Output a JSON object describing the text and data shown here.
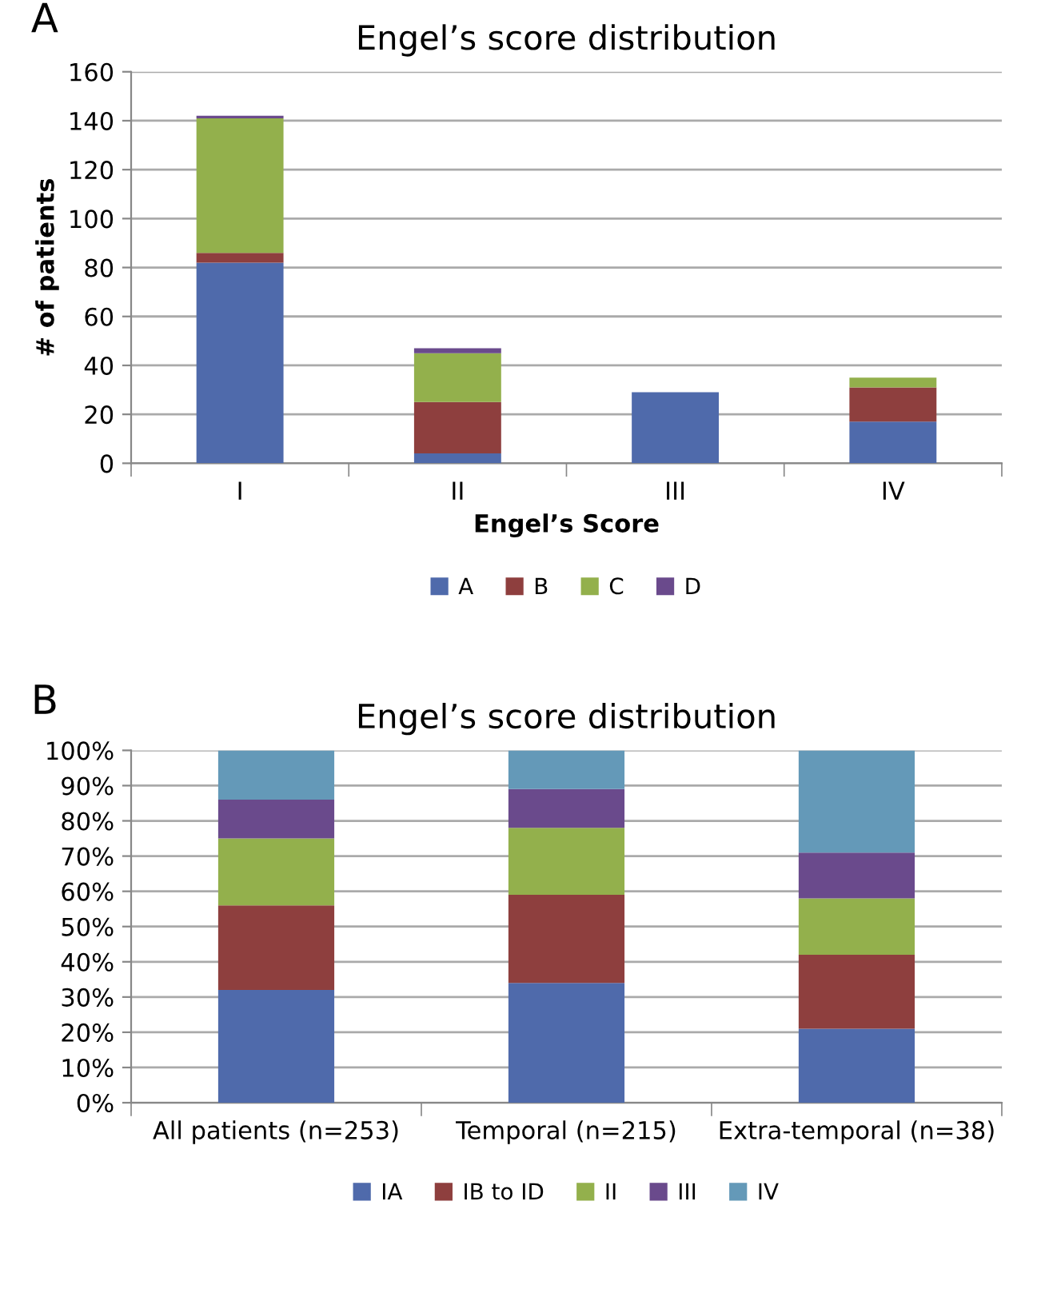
{
  "chart_data": [
    {
      "type": "bar",
      "title": "Engel’s score distribution",
      "xlabel": "Engel’s Score",
      "ylabel": "# of patients",
      "annotations": [
        "A"
      ],
      "categories": [
        "I",
        "II",
        "III",
        "IV"
      ],
      "stacked": true,
      "series": [
        {
          "name": "A",
          "color": "#4f6aab",
          "values": [
            82,
            4,
            29,
            17
          ]
        },
        {
          "name": "B",
          "color": "#8e3f3e",
          "values": [
            4,
            21,
            0,
            14
          ]
        },
        {
          "name": "C",
          "color": "#93b04c",
          "values": [
            55,
            20,
            0,
            4
          ]
        },
        {
          "name": "D",
          "color": "#6a4a8c",
          "values": [
            1,
            2,
            0,
            0
          ]
        }
      ],
      "ylim": [
        0,
        160
      ],
      "yticks": [
        0,
        20,
        40,
        60,
        80,
        100,
        120,
        140,
        160
      ],
      "grid": "y",
      "legend": "bottom"
    },
    {
      "type": "bar",
      "title": "Engel’s score distribution",
      "annotations": [
        "B"
      ],
      "categories": [
        "All patients (n=253)",
        "Temporal (n=215)",
        "Extra-temporal (n=38)"
      ],
      "stacked": true,
      "series": [
        {
          "name": "IA",
          "color": "#4f6aab",
          "values": [
            32,
            34,
            21
          ]
        },
        {
          "name": "IB to ID",
          "color": "#8e3f3e",
          "values": [
            24,
            25,
            21
          ]
        },
        {
          "name": "II",
          "color": "#93b04c",
          "values": [
            19,
            19,
            16
          ]
        },
        {
          "name": "III",
          "color": "#6a4a8c",
          "values": [
            11,
            11,
            13
          ]
        },
        {
          "name": "IV",
          "color": "#6499b8",
          "values": [
            14,
            11,
            29
          ]
        }
      ],
      "ylim": [
        0,
        100
      ],
      "yticks": [
        {
          "value": 0,
          "label": "0%"
        },
        {
          "value": 10,
          "label": "10%"
        },
        {
          "value": 20,
          "label": "20%"
        },
        {
          "value": 30,
          "label": "30%"
        },
        {
          "value": 40,
          "label": "40%"
        },
        {
          "value": 50,
          "label": "50%"
        },
        {
          "value": 60,
          "label": "60%"
        },
        {
          "value": 70,
          "label": "70%"
        },
        {
          "value": 80,
          "label": "80%"
        },
        {
          "value": 90,
          "label": "90%"
        },
        {
          "value": 100,
          "label": "100%"
        }
      ],
      "grid": "y",
      "legend": "bottom"
    }
  ]
}
